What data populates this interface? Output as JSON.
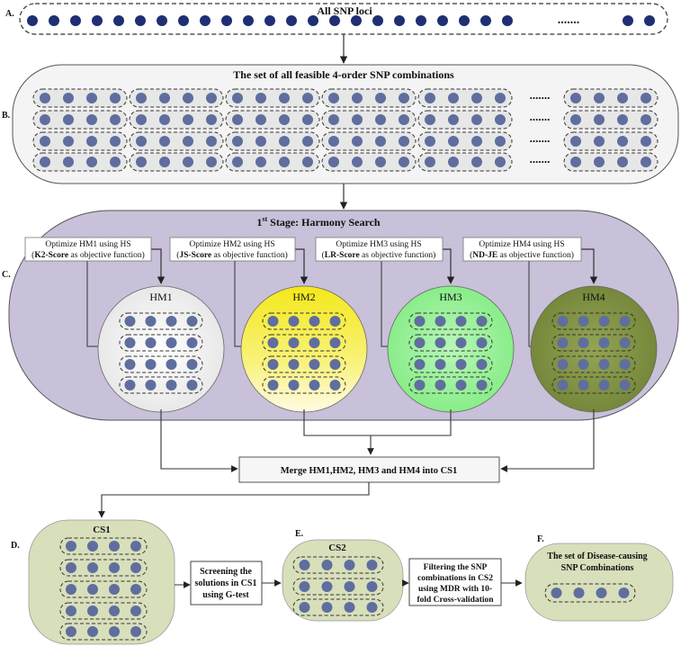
{
  "section_labels": {
    "a": "A.",
    "b": "B.",
    "c": "C.",
    "d": "D.",
    "e": "E.",
    "f": "F."
  },
  "a": {
    "title": "All SNP loci",
    "ellipsis": "......."
  },
  "b": {
    "title": "The set of all feasible 4-order SNP combinations",
    "ellipsis": "......."
  },
  "c": {
    "title_prefix": "1",
    "title_sup": "st",
    "title_rest": " Stage: Harmony Search",
    "optimize": [
      {
        "line1": "Optimize HM1 using HS",
        "score": "K2-Score",
        "suffix": " as objective function)"
      },
      {
        "line1": "Optimize HM2 using HS",
        "score": "JS-Score",
        "suffix": " as objective function)"
      },
      {
        "line1": "Optimize HM3 using HS",
        "score": "LR-Score",
        "suffix": " as objective function)"
      },
      {
        "line1": "Optimize HM4 using HS",
        "score": "ND-JE",
        "suffix": " as objective function)"
      }
    ],
    "hm_labels": [
      "HM1",
      "HM2",
      "HM3",
      "HM4"
    ]
  },
  "merge": {
    "label": "Merge HM1,HM2, HM3 and HM4 into CS1"
  },
  "d": {
    "title": "CS1",
    "screen": [
      "Screening the",
      "solutions in CS1",
      "using G-test"
    ]
  },
  "e": {
    "title": "CS2",
    "filter": [
      "Filtering the SNP",
      "combinations in CS2",
      "using MDR with 10-",
      "fold Cross-validation"
    ]
  },
  "f": {
    "title": [
      "The set of Disease-causing",
      "SNP Combinations"
    ]
  },
  "colors": {
    "dot": "#5f6e9e",
    "dot_dark": "#1f2f74",
    "panel_b": "#f4f4f4",
    "panel_c": "#c9c0d9",
    "hm1": "#f2f2f2",
    "hm2": "#f5ec1c",
    "hm3": "#8ff08f",
    "hm4": "#7f8f3f",
    "sage": "#d8dfbb"
  }
}
